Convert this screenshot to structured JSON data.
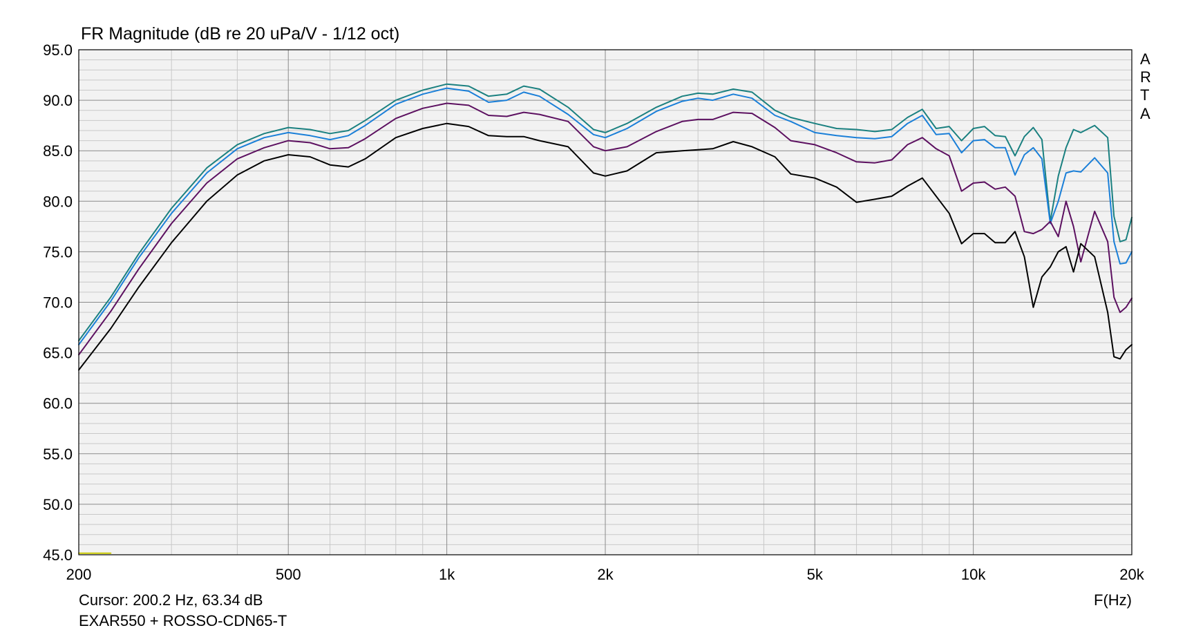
{
  "chart_data": {
    "type": "line",
    "title": "FR Magnitude (dB re 20 uPa/V - 1/12 oct)",
    "xlabel": "F(Hz)",
    "x_scale": "log",
    "xlim": [
      200,
      20000
    ],
    "ylim": [
      45,
      95
    ],
    "grid": true,
    "x_tick_labels": [
      {
        "value": 200,
        "label": "200"
      },
      {
        "value": 500,
        "label": "500"
      },
      {
        "value": 1000,
        "label": "1k"
      },
      {
        "value": 2000,
        "label": "2k"
      },
      {
        "value": 5000,
        "label": "5k"
      },
      {
        "value": 10000,
        "label": "10k"
      },
      {
        "value": 20000,
        "label": "20k"
      }
    ],
    "y_tick_labels": [
      {
        "value": 95,
        "label": "95.0"
      },
      {
        "value": 90,
        "label": "90.0"
      },
      {
        "value": 85,
        "label": "85.0"
      },
      {
        "value": 80,
        "label": "80.0"
      },
      {
        "value": 75,
        "label": "75.0"
      },
      {
        "value": 70,
        "label": "70.0"
      },
      {
        "value": 65,
        "label": "65.0"
      },
      {
        "value": 60,
        "label": "60.0"
      },
      {
        "value": 55,
        "label": "55.0"
      },
      {
        "value": 50,
        "label": "50.0"
      },
      {
        "value": 45,
        "label": "45.0"
      }
    ],
    "series": [
      {
        "color": "#1a8080",
        "x": [
          200,
          230,
          260,
          300,
          350,
          400,
          450,
          500,
          550,
          600,
          650,
          700,
          800,
          900,
          1000,
          1100,
          1200,
          1300,
          1400,
          1500,
          1700,
          1900,
          2000,
          2200,
          2500,
          2800,
          3000,
          3200,
          3500,
          3800,
          4200,
          4500,
          5000,
          5500,
          6000,
          6500,
          7000,
          7500,
          8000,
          8500,
          9000,
          9500,
          10000,
          10500,
          11000,
          11500,
          12000,
          12500,
          13000,
          13500,
          14000,
          14500,
          15000,
          15500,
          16000,
          17000,
          18000,
          18500,
          19000,
          19500,
          20000
        ],
        "y": [
          66.2,
          70.5,
          74.8,
          79.3,
          83.3,
          85.6,
          86.7,
          87.3,
          87.1,
          86.7,
          87.0,
          88.0,
          90.0,
          91.0,
          91.6,
          91.4,
          90.4,
          90.6,
          91.4,
          91.1,
          89.3,
          87.1,
          86.8,
          87.7,
          89.3,
          90.4,
          90.7,
          90.6,
          91.1,
          90.8,
          89.0,
          88.3,
          87.7,
          87.2,
          87.1,
          86.9,
          87.1,
          88.3,
          89.1,
          87.2,
          87.4,
          86.0,
          87.2,
          87.4,
          86.5,
          86.4,
          84.5,
          86.4,
          87.3,
          86.1,
          78.0,
          82.5,
          85.3,
          87.1,
          86.8,
          87.5,
          86.3,
          78.5,
          76.0,
          76.2,
          78.4
        ]
      },
      {
        "color": "#1a7fd8",
        "x": [
          200,
          230,
          260,
          300,
          350,
          400,
          450,
          500,
          550,
          600,
          650,
          700,
          800,
          900,
          1000,
          1100,
          1200,
          1300,
          1400,
          1500,
          1700,
          1900,
          2000,
          2200,
          2500,
          2800,
          3000,
          3200,
          3500,
          3800,
          4200,
          4500,
          5000,
          5500,
          6000,
          6500,
          7000,
          7500,
          8000,
          8500,
          9000,
          9500,
          10000,
          10500,
          11000,
          11500,
          12000,
          12500,
          13000,
          13500,
          14000,
          14500,
          15000,
          15500,
          16000,
          17000,
          18000,
          18500,
          19000,
          19500,
          20000
        ],
        "y": [
          65.8,
          70.1,
          74.4,
          78.8,
          82.8,
          85.2,
          86.3,
          86.8,
          86.5,
          86.1,
          86.5,
          87.5,
          89.6,
          90.6,
          91.2,
          90.9,
          89.8,
          90.0,
          90.8,
          90.4,
          88.6,
          86.6,
          86.3,
          87.2,
          88.9,
          89.9,
          90.2,
          90.0,
          90.6,
          90.2,
          88.5,
          87.9,
          86.8,
          86.5,
          86.3,
          86.2,
          86.4,
          87.7,
          88.5,
          86.6,
          86.7,
          84.8,
          86.0,
          86.1,
          85.3,
          85.3,
          82.6,
          84.6,
          85.3,
          84.2,
          77.8,
          80.0,
          82.8,
          83.0,
          82.9,
          84.3,
          82.8,
          76.0,
          73.8,
          73.9,
          75.0
        ]
      },
      {
        "color": "#5c1060",
        "x": [
          200,
          230,
          260,
          300,
          350,
          400,
          450,
          500,
          550,
          600,
          650,
          700,
          800,
          900,
          1000,
          1100,
          1200,
          1300,
          1400,
          1500,
          1700,
          1900,
          2000,
          2200,
          2500,
          2800,
          3000,
          3200,
          3500,
          3800,
          4200,
          4500,
          5000,
          5500,
          6000,
          6500,
          7000,
          7500,
          8000,
          8500,
          9000,
          9500,
          10000,
          10500,
          11000,
          11500,
          12000,
          12500,
          13000,
          13500,
          14000,
          14500,
          15000,
          15500,
          16000,
          17000,
          18000,
          18500,
          19000,
          19500,
          20000
        ],
        "y": [
          64.8,
          69.1,
          73.3,
          77.8,
          81.8,
          84.2,
          85.3,
          86.0,
          85.8,
          85.2,
          85.3,
          86.2,
          88.2,
          89.2,
          89.7,
          89.5,
          88.5,
          88.4,
          88.8,
          88.6,
          87.9,
          85.4,
          85.0,
          85.4,
          86.9,
          87.9,
          88.1,
          88.1,
          88.8,
          88.7,
          87.3,
          86.0,
          85.6,
          84.8,
          83.9,
          83.8,
          84.1,
          85.6,
          86.3,
          85.2,
          84.5,
          81.0,
          81.8,
          81.9,
          81.2,
          81.4,
          80.5,
          77.0,
          76.8,
          77.2,
          78.0,
          76.5,
          80.0,
          77.5,
          74.0,
          79.0,
          76.0,
          70.5,
          69.0,
          69.5,
          70.4
        ]
      },
      {
        "color": "#000000",
        "x": [
          200,
          230,
          260,
          300,
          350,
          400,
          450,
          500,
          550,
          600,
          650,
          700,
          800,
          900,
          1000,
          1100,
          1200,
          1300,
          1400,
          1500,
          1700,
          1900,
          2000,
          2200,
          2500,
          2800,
          3000,
          3200,
          3500,
          3800,
          4200,
          4500,
          5000,
          5500,
          6000,
          6500,
          7000,
          7500,
          8000,
          8500,
          9000,
          9500,
          10000,
          10500,
          11000,
          11500,
          12000,
          12500,
          13000,
          13500,
          14000,
          14500,
          15000,
          15500,
          16000,
          17000,
          18000,
          18500,
          19000,
          19500,
          20000
        ],
        "y": [
          63.3,
          67.4,
          71.5,
          75.9,
          80.0,
          82.6,
          84.0,
          84.6,
          84.4,
          83.6,
          83.4,
          84.2,
          86.3,
          87.2,
          87.7,
          87.4,
          86.5,
          86.4,
          86.4,
          86.0,
          85.4,
          82.8,
          82.5,
          83.0,
          84.8,
          85.0,
          85.1,
          85.2,
          85.9,
          85.4,
          84.4,
          82.7,
          82.3,
          81.4,
          79.9,
          80.2,
          80.5,
          81.5,
          82.3,
          80.5,
          78.8,
          75.8,
          76.8,
          76.8,
          75.9,
          75.9,
          77.0,
          74.5,
          69.5,
          72.5,
          73.5,
          75.0,
          75.5,
          73.0,
          75.8,
          74.5,
          69.0,
          64.6,
          64.4,
          65.3,
          65.8
        ]
      },
      {
        "color": "#c8c800",
        "x": [
          200,
          230
        ],
        "y": [
          45.15,
          45.15
        ]
      }
    ]
  },
  "right_label": [
    "A",
    "R",
    "T",
    "A"
  ],
  "cursor_text": "Cursor: 200.2 Hz, 63.34 dB",
  "footer_name": "EXAR550 + ROSSO-CDN65-T"
}
